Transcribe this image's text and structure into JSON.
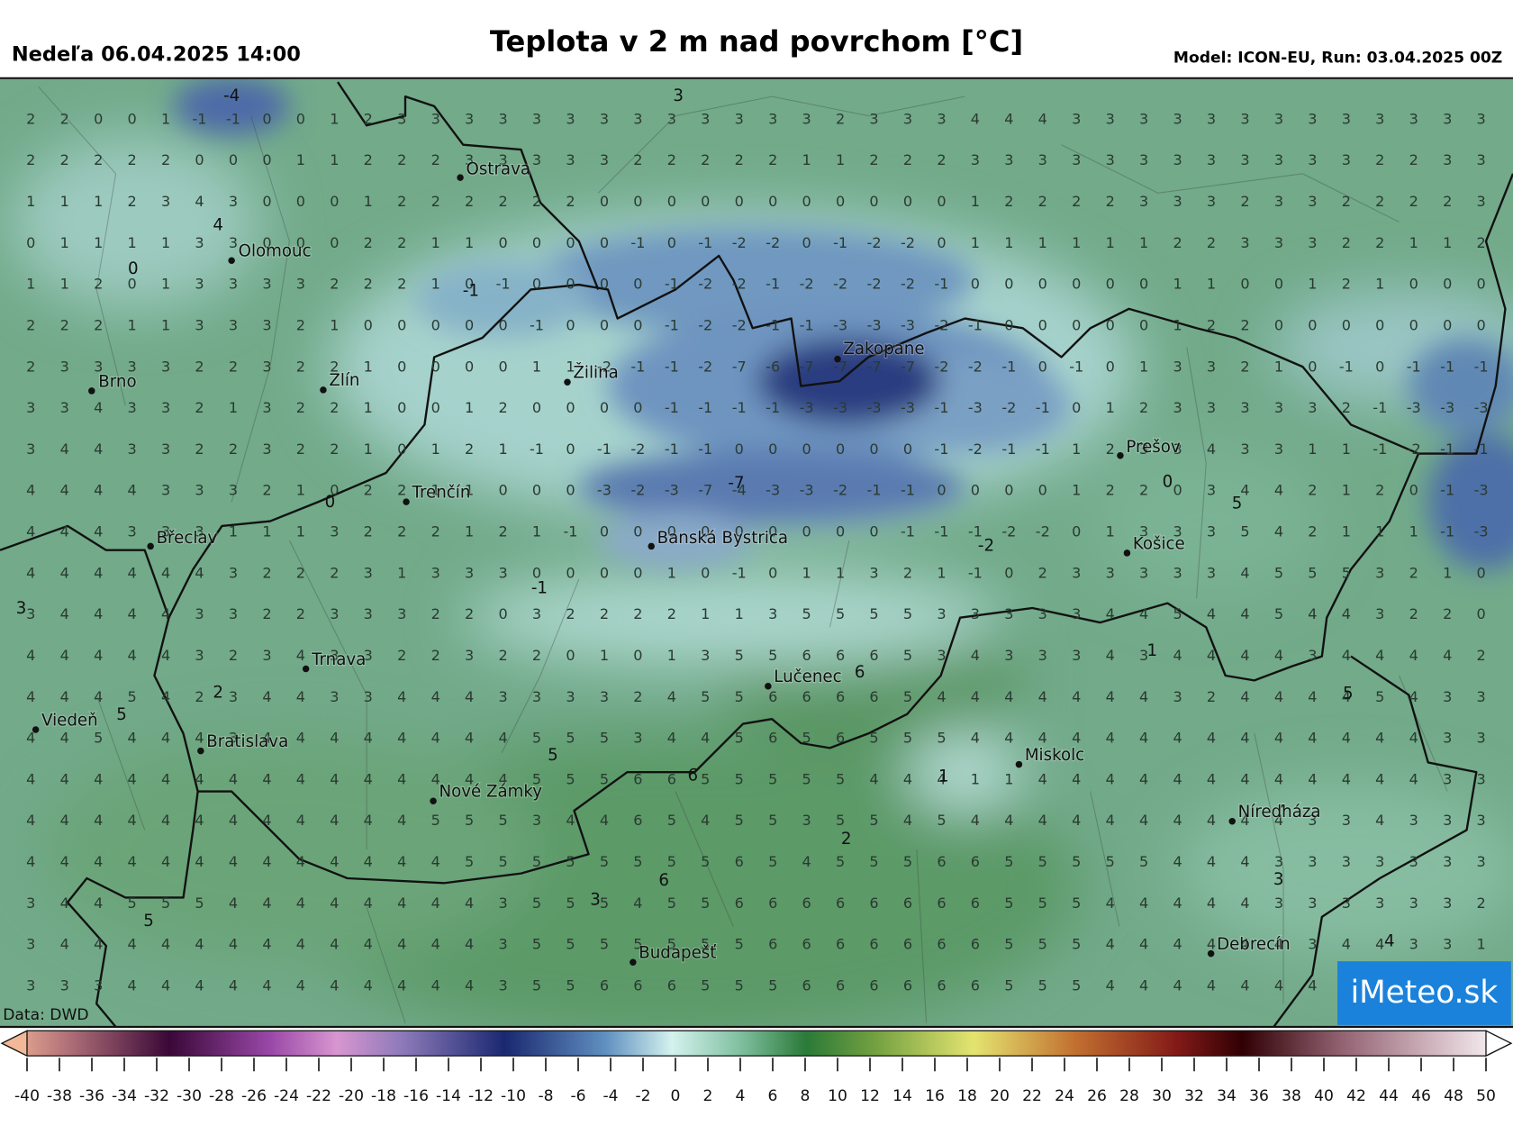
{
  "header": {
    "date": "Nedeľa 06.04.2025 14:00",
    "title": "Teplota v 2 m nad povrchom [°C]",
    "model": "Model: ICON-EU, Run: 03.04.2025 00Z"
  },
  "map": {
    "grid_values": [
      [
        2,
        2,
        0,
        0,
        1,
        -1,
        -1,
        0,
        0,
        1,
        2,
        3,
        3,
        3,
        3,
        3,
        3,
        3,
        3,
        3,
        3,
        3,
        3,
        3,
        2,
        3,
        3,
        3,
        4,
        4,
        4,
        3,
        3,
        3,
        3,
        3,
        3,
        3,
        3,
        3,
        3,
        3,
        3,
        3
      ],
      [
        2,
        2,
        2,
        2,
        2,
        0,
        0,
        0,
        1,
        1,
        2,
        2,
        2,
        3,
        3,
        3,
        3,
        3,
        2,
        2,
        2,
        2,
        2,
        1,
        1,
        2,
        2,
        2,
        3,
        3,
        3,
        3,
        3,
        3,
        3,
        3,
        3,
        3,
        3,
        3,
        2,
        2,
        3,
        3
      ],
      [
        1,
        1,
        1,
        2,
        3,
        4,
        3,
        0,
        0,
        0,
        1,
        2,
        2,
        2,
        2,
        2,
        2,
        0,
        0,
        0,
        0,
        0,
        0,
        0,
        0,
        0,
        0,
        0,
        1,
        2,
        2,
        2,
        2,
        3,
        3,
        3,
        2,
        3,
        3,
        2,
        2,
        2,
        2,
        3
      ],
      [
        0,
        1,
        1,
        1,
        1,
        3,
        3,
        0,
        0,
        0,
        2,
        2,
        1,
        1,
        0,
        0,
        0,
        0,
        -1,
        0,
        -1,
        -2,
        -2,
        0,
        -1,
        -2,
        -2,
        0,
        1,
        1,
        1,
        1,
        1,
        1,
        2,
        2,
        3,
        3,
        3,
        2,
        2,
        1,
        1,
        2
      ],
      [
        1,
        1,
        2,
        0,
        1,
        3,
        3,
        3,
        3,
        2,
        2,
        2,
        1,
        0,
        -1,
        0,
        0,
        0,
        0,
        -1,
        -2,
        -2,
        -1,
        -2,
        -2,
        -2,
        -2,
        -1,
        0,
        0,
        0,
        0,
        0,
        0,
        1,
        1,
        0,
        0,
        1,
        2,
        1,
        0,
        0,
        0
      ],
      [
        2,
        2,
        2,
        1,
        1,
        3,
        3,
        3,
        2,
        1,
        0,
        0,
        0,
        0,
        0,
        -1,
        0,
        0,
        0,
        -1,
        -2,
        -2,
        -1,
        -1,
        -3,
        -3,
        -3,
        -2,
        -1,
        0,
        0,
        0,
        0,
        0,
        1,
        2,
        2,
        0,
        0,
        0,
        0,
        0,
        0,
        0
      ],
      [
        2,
        3,
        3,
        3,
        3,
        2,
        2,
        3,
        2,
        2,
        1,
        0,
        0,
        0,
        0,
        1,
        1,
        -2,
        -1,
        -1,
        -2,
        -7,
        -6,
        -7,
        -7,
        -7,
        -7,
        -2,
        -2,
        -1,
        0,
        -1,
        0,
        1,
        3,
        3,
        2,
        1,
        0,
        -1,
        0,
        -1,
        -1,
        -1
      ],
      [
        3,
        3,
        4,
        3,
        3,
        2,
        1,
        3,
        2,
        2,
        1,
        0,
        0,
        1,
        2,
        0,
        0,
        0,
        0,
        -1,
        -1,
        -1,
        -1,
        -3,
        -3,
        -3,
        -3,
        -1,
        -3,
        -2,
        -1,
        0,
        1,
        2,
        3,
        3,
        3,
        3,
        3,
        2,
        -1,
        -3,
        -3,
        -3
      ],
      [
        3,
        4,
        4,
        3,
        3,
        2,
        2,
        3,
        2,
        2,
        1,
        0,
        1,
        2,
        1,
        -1,
        0,
        -1,
        -2,
        -1,
        -1,
        0,
        0,
        0,
        0,
        0,
        0,
        -1,
        -2,
        -1,
        -1,
        1,
        2,
        3,
        3,
        4,
        3,
        3,
        1,
        1,
        -1,
        -2,
        -1,
        -1
      ],
      [
        4,
        4,
        4,
        4,
        3,
        3,
        3,
        2,
        1,
        0,
        2,
        2,
        1,
        1,
        0,
        0,
        0,
        -3,
        -2,
        -3,
        -7,
        -4,
        -3,
        -3,
        -2,
        -1,
        -1,
        0,
        0,
        0,
        0,
        1,
        2,
        2,
        0,
        3,
        4,
        4,
        2,
        1,
        2,
        0,
        -1,
        -3
      ],
      [
        4,
        4,
        4,
        3,
        3,
        3,
        1,
        1,
        1,
        3,
        2,
        2,
        2,
        1,
        2,
        1,
        -1,
        0,
        0,
        0,
        0,
        0,
        0,
        0,
        0,
        0,
        -1,
        -1,
        -1,
        -2,
        -2,
        0,
        1,
        3,
        3,
        3,
        5,
        4,
        2,
        1,
        1,
        1,
        -1,
        -3
      ],
      [
        4,
        4,
        4,
        4,
        4,
        4,
        3,
        2,
        2,
        2,
        3,
        1,
        3,
        3,
        3,
        0,
        0,
        0,
        0,
        1,
        0,
        -1,
        0,
        1,
        1,
        3,
        2,
        1,
        -1,
        0,
        2,
        3,
        3,
        3,
        3,
        3,
        4,
        5,
        5,
        5,
        3,
        2,
        1,
        0
      ],
      [
        3,
        4,
        4,
        4,
        4,
        3,
        3,
        2,
        2,
        3,
        3,
        3,
        2,
        2,
        0,
        3,
        2,
        2,
        2,
        2,
        1,
        1,
        3,
        5,
        5,
        5,
        5,
        3,
        3,
        3,
        3,
        3,
        4,
        4,
        5,
        4,
        4,
        5,
        4,
        4,
        3,
        2,
        2,
        0
      ],
      [
        4,
        4,
        4,
        4,
        4,
        3,
        2,
        3,
        4,
        3,
        3,
        2,
        2,
        3,
        2,
        2,
        0,
        1,
        0,
        1,
        3,
        5,
        5,
        6,
        6,
        6,
        5,
        3,
        4,
        3,
        3,
        3,
        4,
        3,
        4,
        4,
        4,
        4,
        3,
        4,
        4,
        4,
        4,
        2
      ],
      [
        4,
        4,
        4,
        5,
        4,
        2,
        3,
        4,
        4,
        3,
        3,
        4,
        4,
        4,
        3,
        3,
        3,
        3,
        2,
        4,
        5,
        5,
        6,
        6,
        6,
        6,
        5,
        4,
        4,
        4,
        4,
        4,
        4,
        4,
        3,
        2,
        4,
        4,
        4,
        4,
        5,
        4,
        3,
        3
      ],
      [
        4,
        4,
        5,
        4,
        4,
        4,
        3,
        4,
        4,
        4,
        4,
        4,
        4,
        4,
        4,
        5,
        5,
        5,
        3,
        4,
        4,
        5,
        6,
        5,
        6,
        5,
        5,
        5,
        4,
        4,
        4,
        4,
        4,
        4,
        4,
        4,
        4,
        4,
        4,
        4,
        4,
        4,
        3,
        3
      ],
      [
        4,
        4,
        4,
        4,
        4,
        4,
        4,
        4,
        4,
        4,
        4,
        4,
        4,
        4,
        4,
        5,
        5,
        5,
        6,
        6,
        5,
        5,
        5,
        5,
        5,
        4,
        4,
        4,
        1,
        1,
        4,
        4,
        4,
        4,
        4,
        4,
        4,
        4,
        4,
        4,
        4,
        4,
        3,
        3
      ],
      [
        4,
        4,
        4,
        4,
        4,
        4,
        4,
        4,
        4,
        4,
        4,
        4,
        5,
        5,
        5,
        3,
        4,
        4,
        6,
        5,
        4,
        5,
        5,
        3,
        5,
        5,
        4,
        5,
        4,
        4,
        4,
        4,
        4,
        4,
        4,
        4,
        4,
        4,
        3,
        3,
        4,
        3,
        3,
        3
      ],
      [
        4,
        4,
        4,
        4,
        4,
        4,
        4,
        4,
        4,
        4,
        4,
        4,
        4,
        5,
        5,
        5,
        5,
        5,
        5,
        5,
        5,
        6,
        5,
        4,
        5,
        5,
        5,
        6,
        6,
        5,
        5,
        5,
        5,
        5,
        4,
        4,
        4,
        3,
        3,
        3,
        3,
        3,
        3,
        3
      ],
      [
        3,
        4,
        4,
        5,
        5,
        5,
        4,
        4,
        4,
        4,
        4,
        4,
        4,
        4,
        3,
        5,
        5,
        5,
        4,
        5,
        5,
        6,
        6,
        6,
        6,
        6,
        6,
        6,
        6,
        5,
        5,
        5,
        4,
        4,
        4,
        4,
        4,
        3,
        3,
        3,
        3,
        3,
        3,
        2
      ],
      [
        3,
        4,
        4,
        4,
        4,
        4,
        4,
        4,
        4,
        4,
        4,
        4,
        4,
        4,
        3,
        5,
        5,
        5,
        5,
        5,
        5,
        5,
        6,
        6,
        6,
        6,
        6,
        6,
        6,
        5,
        5,
        5,
        4,
        4,
        4,
        4,
        4,
        4,
        3,
        4,
        4,
        3,
        3,
        1
      ],
      [
        3,
        3,
        3,
        4,
        4,
        4,
        4,
        4,
        4,
        4,
        4,
        4,
        4,
        4,
        3,
        5,
        5,
        6,
        6,
        6,
        5,
        5,
        5,
        6,
        6,
        6,
        6,
        6,
        6,
        5,
        5,
        5,
        4,
        4,
        4,
        4,
        4,
        4,
        4,
        4,
        3,
        3,
        3,
        3
      ]
    ],
    "cities": [
      "Ostrava",
      "Olomouc",
      "Brno",
      "Zlín",
      "Žilina",
      "Zakopane",
      "Prešov",
      "Trenčín",
      "Břeclav",
      "Banská Bystrica",
      "Košice",
      "Trnava",
      "Lučenec",
      "Viedeň",
      "Bratislava",
      "Miskolc",
      "Nové Zámky",
      "Níreďháza",
      "Debrecín",
      "Budapešť"
    ],
    "contour_labels": [
      "-4",
      "3",
      "4",
      "0",
      "-1",
      "0",
      "-7",
      "5",
      "0",
      "-2",
      "-1",
      "3",
      "6",
      "1",
      "2",
      "5",
      "5",
      "5",
      "6",
      "1",
      "2",
      "3",
      "6",
      "3",
      "5",
      "4"
    ],
    "source": "Data: DWD",
    "logo": "iMeteo.sk"
  },
  "colorbar": {
    "ticks": [
      -40,
      -38,
      -36,
      -34,
      -32,
      -30,
      -28,
      -26,
      -24,
      -22,
      -20,
      -18,
      -16,
      -14,
      -12,
      -10,
      -8,
      -6,
      -4,
      -2,
      0,
      2,
      4,
      6,
      8,
      10,
      12,
      14,
      16,
      18,
      20,
      22,
      24,
      26,
      28,
      30,
      32,
      34,
      36,
      38,
      40,
      42,
      44,
      46,
      48,
      50
    ]
  }
}
